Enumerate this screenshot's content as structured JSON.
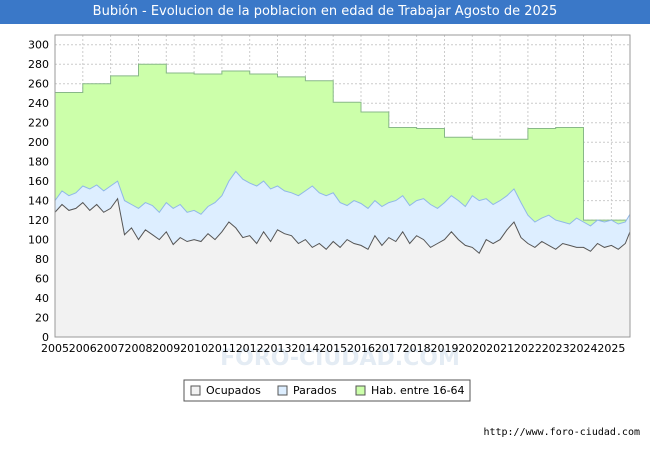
{
  "chart_data": {
    "type": "area",
    "title": "Bubión - Evolucion de la poblacion en edad de Trabajar Agosto de 2025",
    "xlabel": "",
    "ylabel": "",
    "ylim": [
      0,
      310
    ],
    "xlim": [
      2005,
      2025.67
    ],
    "yticks": [
      0,
      20,
      40,
      60,
      80,
      100,
      120,
      140,
      160,
      180,
      200,
      220,
      240,
      260,
      280,
      300
    ],
    "xticks": [
      2005,
      2006,
      2007,
      2008,
      2009,
      2010,
      2011,
      2012,
      2013,
      2014,
      2015,
      2016,
      2017,
      2018,
      2019,
      2020,
      2021,
      2022,
      2023,
      2024,
      2025
    ],
    "grid": true,
    "legend_position": "bottom-center",
    "colors": {
      "hab": "#ccffaa",
      "hab_line": "#88b888",
      "parados": "#ddeeff",
      "parados_line": "#90b8e8",
      "ocupados": "#f2f2f2",
      "ocupados_line": "#555555"
    },
    "series": [
      {
        "name": "Hab. entre 16-64",
        "type": "step",
        "x": [
          2005,
          2006,
          2007,
          2008,
          2009,
          2010,
          2011,
          2012,
          2013,
          2014,
          2015,
          2016,
          2017,
          2018,
          2019,
          2020,
          2021,
          2022,
          2023,
          2024
        ],
        "values": [
          251,
          260,
          268,
          280,
          271,
          270,
          273,
          270,
          267,
          263,
          241,
          231,
          215,
          214,
          205,
          203,
          203,
          214,
          215,
          120
        ]
      },
      {
        "name": "Parados",
        "type": "line",
        "x": [
          2005,
          2005.25,
          2005.5,
          2005.75,
          2006,
          2006.25,
          2006.5,
          2006.75,
          2007,
          2007.25,
          2007.5,
          2007.75,
          2008,
          2008.25,
          2008.5,
          2008.75,
          2009,
          2009.25,
          2009.5,
          2009.75,
          2010,
          2010.25,
          2010.5,
          2010.75,
          2011,
          2011.25,
          2011.5,
          2011.75,
          2012,
          2012.25,
          2012.5,
          2012.75,
          2013,
          2013.25,
          2013.5,
          2013.75,
          2014,
          2014.25,
          2014.5,
          2014.75,
          2015,
          2015.25,
          2015.5,
          2015.75,
          2016,
          2016.25,
          2016.5,
          2016.75,
          2017,
          2017.25,
          2017.5,
          2017.75,
          2018,
          2018.25,
          2018.5,
          2018.75,
          2019,
          2019.25,
          2019.5,
          2019.75,
          2020,
          2020.25,
          2020.5,
          2020.75,
          2021,
          2021.25,
          2021.5,
          2021.75,
          2022,
          2022.25,
          2022.5,
          2022.75,
          2023,
          2023.25,
          2023.5,
          2023.75,
          2024,
          2024.25,
          2024.5,
          2024.75,
          2025,
          2025.25,
          2025.5,
          2025.67
        ],
        "values": [
          140,
          150,
          145,
          148,
          155,
          152,
          156,
          150,
          155,
          160,
          140,
          136,
          132,
          138,
          135,
          128,
          138,
          132,
          136,
          128,
          130,
          126,
          134,
          138,
          145,
          160,
          170,
          162,
          158,
          155,
          160,
          152,
          155,
          150,
          148,
          145,
          150,
          155,
          148,
          145,
          148,
          138,
          135,
          140,
          137,
          132,
          140,
          134,
          138,
          140,
          145,
          135,
          140,
          142,
          136,
          132,
          138,
          145,
          140,
          134,
          145,
          140,
          142,
          136,
          140,
          145,
          152,
          138,
          125,
          118,
          122,
          125,
          120,
          118,
          116,
          122,
          118,
          114,
          120,
          118,
          120,
          116,
          118,
          126
        ]
      },
      {
        "name": "Ocupados",
        "type": "line",
        "x": [
          2005,
          2005.25,
          2005.5,
          2005.75,
          2006,
          2006.25,
          2006.5,
          2006.75,
          2007,
          2007.25,
          2007.5,
          2007.75,
          2008,
          2008.25,
          2008.5,
          2008.75,
          2009,
          2009.25,
          2009.5,
          2009.75,
          2010,
          2010.25,
          2010.5,
          2010.75,
          2011,
          2011.25,
          2011.5,
          2011.75,
          2012,
          2012.25,
          2012.5,
          2012.75,
          2013,
          2013.25,
          2013.5,
          2013.75,
          2014,
          2014.25,
          2014.5,
          2014.75,
          2015,
          2015.25,
          2015.5,
          2015.75,
          2016,
          2016.25,
          2016.5,
          2016.75,
          2017,
          2017.25,
          2017.5,
          2017.75,
          2018,
          2018.25,
          2018.5,
          2018.75,
          2019,
          2019.25,
          2019.5,
          2019.75,
          2020,
          2020.25,
          2020.5,
          2020.75,
          2021,
          2021.25,
          2021.5,
          2021.75,
          2022,
          2022.25,
          2022.5,
          2022.75,
          2023,
          2023.25,
          2023.5,
          2023.75,
          2024,
          2024.25,
          2024.5,
          2024.75,
          2025,
          2025.25,
          2025.5,
          2025.67
        ],
        "values": [
          128,
          136,
          130,
          132,
          138,
          130,
          136,
          128,
          132,
          142,
          105,
          112,
          100,
          110,
          105,
          100,
          108,
          95,
          102,
          98,
          100,
          98,
          106,
          100,
          108,
          118,
          112,
          102,
          104,
          96,
          108,
          98,
          110,
          106,
          104,
          96,
          100,
          92,
          96,
          90,
          98,
          92,
          100,
          96,
          94,
          90,
          104,
          94,
          102,
          98,
          108,
          96,
          104,
          100,
          92,
          96,
          100,
          108,
          100,
          94,
          92,
          86,
          100,
          96,
          100,
          110,
          118,
          102,
          96,
          92,
          98,
          94,
          90,
          96,
          94,
          92,
          92,
          88,
          96,
          92,
          94,
          90,
          96,
          108
        ]
      }
    ]
  },
  "legend": [
    "Ocupados",
    "Parados",
    "Hab. entre 16-64"
  ],
  "watermark": "FORO-CIUDAD.COM",
  "source": "http://www.foro-ciudad.com"
}
